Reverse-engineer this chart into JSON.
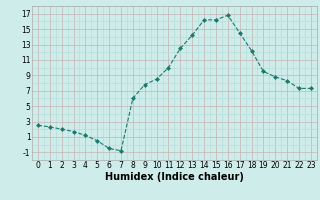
{
  "x": [
    0,
    1,
    2,
    3,
    4,
    5,
    6,
    7,
    8,
    9,
    10,
    11,
    12,
    13,
    14,
    15,
    16,
    17,
    18,
    19,
    20,
    21,
    22,
    23
  ],
  "y": [
    2.5,
    2.3,
    2.0,
    1.7,
    1.2,
    0.5,
    -0.5,
    -0.8,
    6.0,
    7.8,
    8.5,
    10.0,
    12.5,
    14.2,
    16.2,
    16.2,
    16.8,
    14.5,
    12.2,
    9.5,
    8.8,
    8.3,
    7.3,
    7.3
  ],
  "line_color": "#1a7a6e",
  "marker": "D",
  "marker_size": 2.0,
  "bg_color": "#ceecea",
  "grid_color_major": "#c4b4b4",
  "grid_color_minor": "#b8ddd8",
  "xlabel": "Humidex (Indice chaleur)",
  "ylim": [
    -2,
    18
  ],
  "xlim": [
    -0.5,
    23.5
  ],
  "yticks": [
    -1,
    1,
    3,
    5,
    7,
    9,
    11,
    13,
    15,
    17
  ],
  "yticks_minor": [
    0,
    2,
    4,
    6,
    8,
    10,
    12,
    14,
    16,
    18
  ],
  "xticks": [
    0,
    1,
    2,
    3,
    4,
    5,
    6,
    7,
    8,
    9,
    10,
    11,
    12,
    13,
    14,
    15,
    16,
    17,
    18,
    19,
    20,
    21,
    22,
    23
  ],
  "tick_fontsize": 5.5,
  "xlabel_fontsize": 7.0
}
